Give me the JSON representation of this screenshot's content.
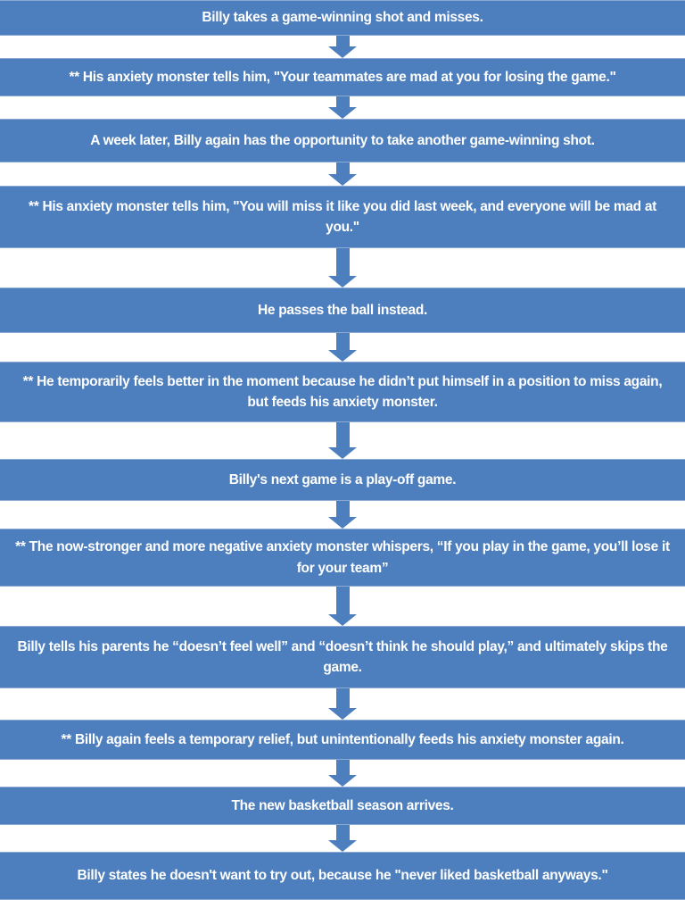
{
  "diagram": {
    "type": "vertical-flowchart",
    "bar_color": "#4d7ebd",
    "arrow_color": "#4d7ebd",
    "text_color": "#ffffff",
    "connector_icon": "down-block-arrow",
    "steps": [
      {
        "text": "Billy takes a game-winning shot and misses."
      },
      {
        "text": "** His anxiety monster tells him, \"Your teammates are mad at you for losing the game.\""
      },
      {
        "text": "A week later, Billy again has the opportunity to take another game-winning shot."
      },
      {
        "text": "** His anxiety monster tells him, \"You will miss it like you did last week, and everyone will be mad at you.\""
      },
      {
        "text": "He passes the ball instead."
      },
      {
        "text": "** He temporarily feels better in the moment because he didn’t put himself in a position to miss again, but feeds his anxiety monster."
      },
      {
        "text": "Billy's next game is a play-off game."
      },
      {
        "text": "** The now-stronger and more negative anxiety monster whispers, “If you play in the game, you’ll lose it for your team”"
      },
      {
        "text": "Billy tells his parents he “doesn’t feel well” and “doesn’t think he should play,” and ultimately skips the game."
      },
      {
        "text": "** Billy again feels a temporary relief, but unintentionally feeds his anxiety monster again."
      },
      {
        "text": "The new basketball season arrives."
      },
      {
        "text": "Billy states he doesn't want to try out, because he \"never liked basketball anyways.\""
      }
    ]
  }
}
